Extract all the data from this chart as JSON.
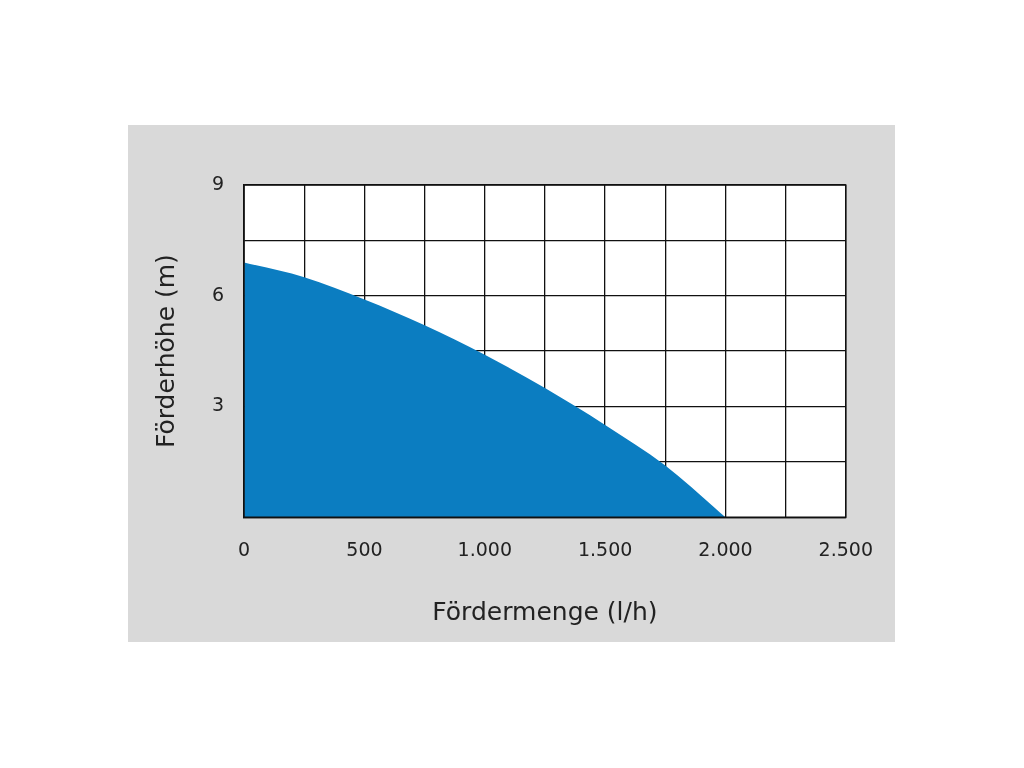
{
  "chart_data": {
    "type": "area",
    "xlabel": "Fördermenge (l/h)",
    "ylabel": "Förderhöhe (m)",
    "x": [
      0,
      250,
      500,
      750,
      1000,
      1250,
      1500,
      1750,
      2000
    ],
    "values": [
      6.9,
      6.5,
      5.9,
      5.2,
      4.4,
      3.5,
      2.5,
      1.4,
      0
    ],
    "color": "#0b7dc1",
    "xlim": [
      0,
      2500
    ],
    "xticks": [
      0,
      {
        "value": 250,
        "label": null
      },
      {
        "value": 500,
        "label": "500"
      },
      {
        "value": 750,
        "label": null
      },
      {
        "value": 1000,
        "label": "1.000"
      },
      {
        "value": 1250,
        "label": null
      },
      {
        "value": 1500,
        "label": "1.500"
      },
      {
        "value": 1750,
        "label": null
      },
      {
        "value": 2000,
        "label": "2.000"
      },
      {
        "value": 2250,
        "label": null
      },
      {
        "value": 2500,
        "label": "2.500"
      }
    ],
    "ylim": [
      0,
      9
    ],
    "yticks": [
      {
        "value": 0,
        "label": null
      },
      {
        "value": 1.5,
        "label": null
      },
      3,
      {
        "value": 4.5,
        "label": null
      },
      6,
      {
        "value": 7.5,
        "label": null
      },
      9
    ],
    "grid": true,
    "legend": false
  }
}
